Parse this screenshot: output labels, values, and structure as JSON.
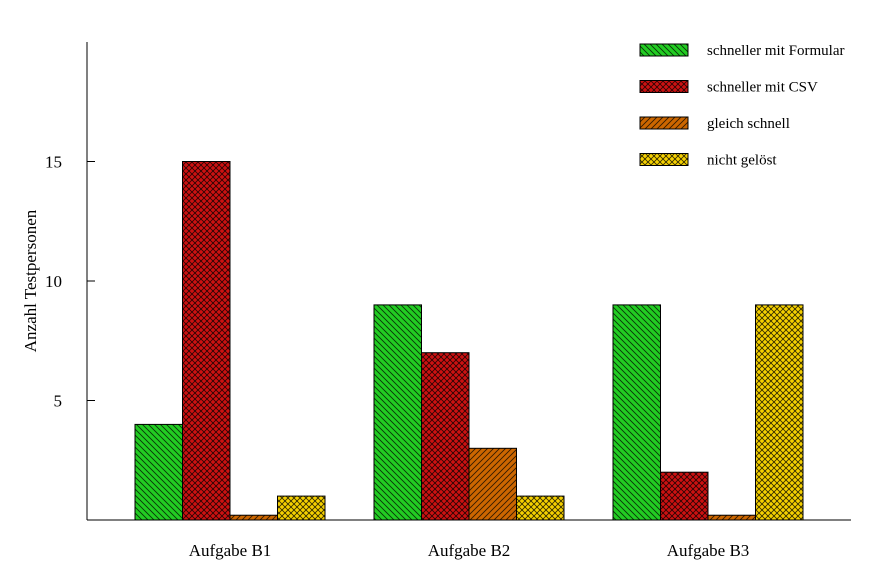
{
  "chart_data": {
    "type": "bar",
    "ylabel": "Anzahl Testpersonen",
    "categories": [
      "Aufgabe B1",
      "Aufgabe B2",
      "Aufgabe B3"
    ],
    "ylim": [
      0,
      20
    ],
    "yticks": [
      5,
      10,
      15
    ],
    "grid": false,
    "legend_position": "top-right",
    "series": [
      {
        "name": "schneller mit Formular",
        "values": [
          4,
          9,
          9
        ],
        "color": "#22cc22",
        "pattern": "diagonal-lines"
      },
      {
        "name": "schneller mit CSV",
        "values": [
          15,
          7,
          2
        ],
        "color": "#cc1111",
        "pattern": "crosshatch"
      },
      {
        "name": "gleich schnell",
        "values": [
          0.2,
          3,
          0.2
        ],
        "color": "#cc6600",
        "pattern": "diagonal-lines"
      },
      {
        "name": "nicht gelöst",
        "values": [
          1,
          1,
          9
        ],
        "color": "#f5d000",
        "pattern": "crosshatch"
      }
    ]
  }
}
